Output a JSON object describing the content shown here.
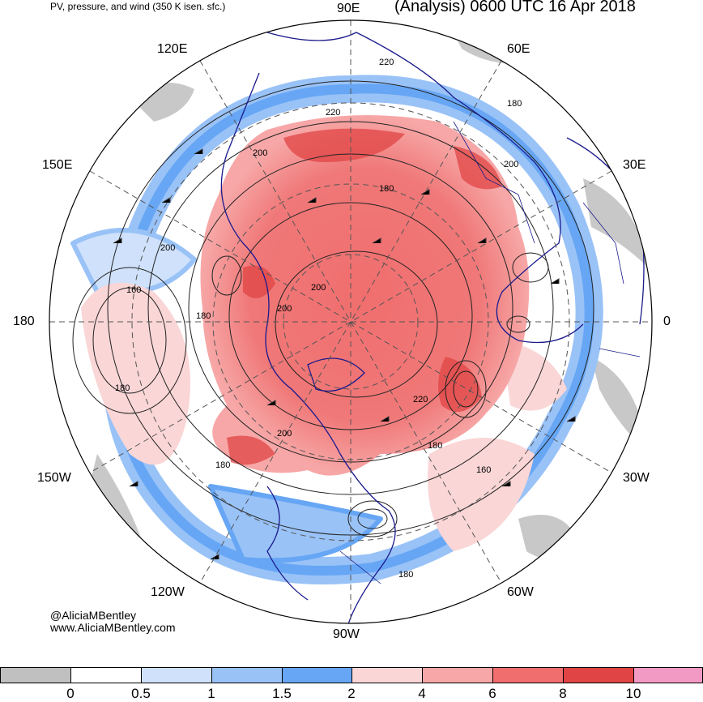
{
  "header": {
    "left_title": "PV, pressure, and wind (350 K isen. sfc.)",
    "right_title": "(Analysis) 0600 UTC 16 Apr 2018"
  },
  "longitude_labels": [
    "90E",
    "60E",
    "30E",
    "0",
    "30W",
    "60W",
    "90W",
    "120W",
    "150W",
    "180",
    "150E",
    "120E"
  ],
  "contour_labels": [
    "220",
    "180",
    "220",
    "200",
    "200",
    "180",
    "200",
    "160",
    "180",
    "200",
    "200",
    "180",
    "220",
    "180",
    "160",
    "200",
    "180",
    "180"
  ],
  "credit": {
    "twitter": "@AliciaMBentley",
    "website": "www.AliciaMBentley.com"
  },
  "colorbar": {
    "tick_labels": [
      "0",
      "0.5",
      "1",
      "1.5",
      "2",
      "4",
      "6",
      "8",
      "10"
    ],
    "colors": [
      "#c0c0c0",
      "#ffffff",
      "#cfe1fb",
      "#99c2f7",
      "#66a6f4",
      "#fad6d6",
      "#f7a7a7",
      "#f06e6e",
      "#e04444",
      "#f39ac4"
    ]
  }
}
